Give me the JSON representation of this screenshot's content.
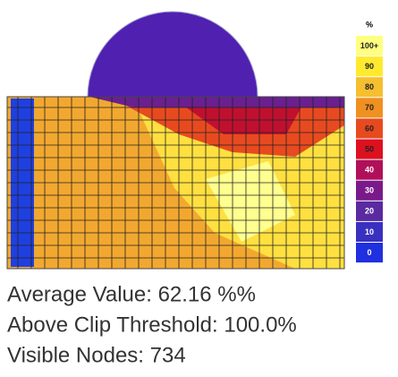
{
  "legend": {
    "title": "%",
    "items": [
      {
        "label": "100+",
        "color": "#ffff80"
      },
      {
        "label": "90",
        "color": "#ffea30"
      },
      {
        "label": "80",
        "color": "#f5bf30"
      },
      {
        "label": "70",
        "color": "#f09020"
      },
      {
        "label": "60",
        "color": "#e84a20"
      },
      {
        "label": "50",
        "color": "#dd1020"
      },
      {
        "label": "40",
        "color": "#b0105a"
      },
      {
        "label": "30",
        "color": "#7a1a8a"
      },
      {
        "label": "20",
        "color": "#5a2aa0"
      },
      {
        "label": "10",
        "color": "#3a30c0"
      },
      {
        "label": "0",
        "color": "#1f30e0"
      }
    ]
  },
  "stats": [
    "Average Value: 62.16 %%",
    "Above Clip Threshold: 100.0%",
    "Visible Nodes: 734"
  ]
}
